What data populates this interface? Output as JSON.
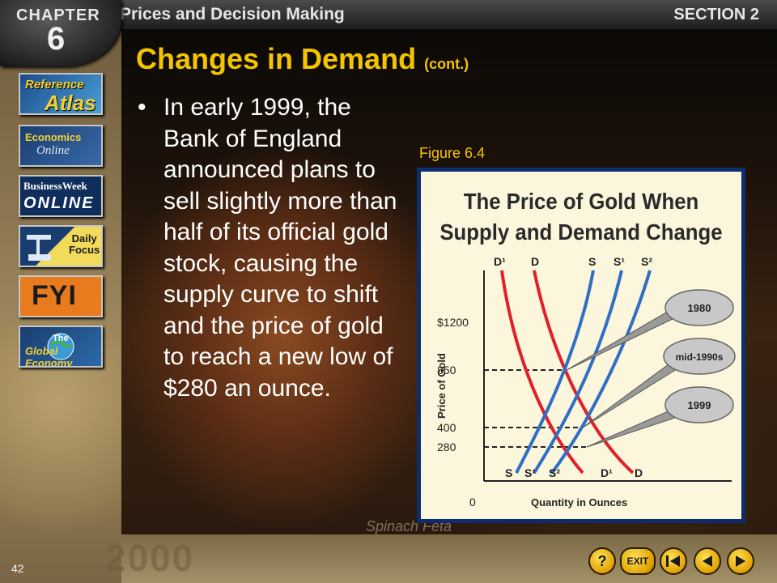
{
  "header": {
    "chapter_word": "CHAPTER",
    "chapter_number": "6",
    "course_title": "Prices and Decision Making",
    "section": "SECTION 2"
  },
  "sidebar": {
    "items": [
      {
        "label_a": "Reference",
        "label_b": "Atlas",
        "icon": "atlas-icon"
      },
      {
        "label_a": "Economics",
        "label_b": "Online",
        "icon": "econ-online-icon"
      },
      {
        "label_a": "BusinessWeek",
        "label_b": "ONLINE",
        "icon": "businessweek-icon"
      },
      {
        "label_a": "Daily",
        "label_b": "Focus",
        "icon": "daily-focus-icon"
      },
      {
        "label_a": "FYI",
        "label_b": "",
        "icon": "fyi-icon"
      },
      {
        "label_a": "The",
        "label_b": "Global Economy",
        "icon": "global-economy-icon"
      }
    ]
  },
  "slide": {
    "title": "Changes in Demand",
    "title_suffix": "(cont.)",
    "bullet": "In early 1999, the Bank of England announced plans to sell slightly more than half of its official gold stock, causing the supply curve to shift and the price of gold to reach a new low of $280 an ounce.",
    "figure_label": "Figure 6.4"
  },
  "chart_data": {
    "type": "line",
    "title_line1": "The Price of Gold When",
    "title_line2": "Supply and Demand Change",
    "xlabel": "Quantity in Ounces",
    "ylabel": "Price of Gold",
    "origin_label": "0",
    "y_ticks": [
      "$1200",
      "850",
      "400",
      "280"
    ],
    "top_labels": [
      "D¹",
      "D",
      "S",
      "S¹",
      "S²"
    ],
    "bottom_labels": [
      "S",
      "S¹",
      "S²",
      "D¹",
      "D"
    ],
    "callouts": [
      "1980",
      "mid-1990s",
      "1999"
    ],
    "colors": {
      "demand": "#e0202a",
      "supply": "#2f6fc4",
      "callout": "#bdbdbd"
    }
  },
  "bottom_nav": {
    "help": "?",
    "exit": "EXIT",
    "first": "first-icon",
    "prev": "prev-icon",
    "next": "next-icon"
  },
  "page_number": "42"
}
